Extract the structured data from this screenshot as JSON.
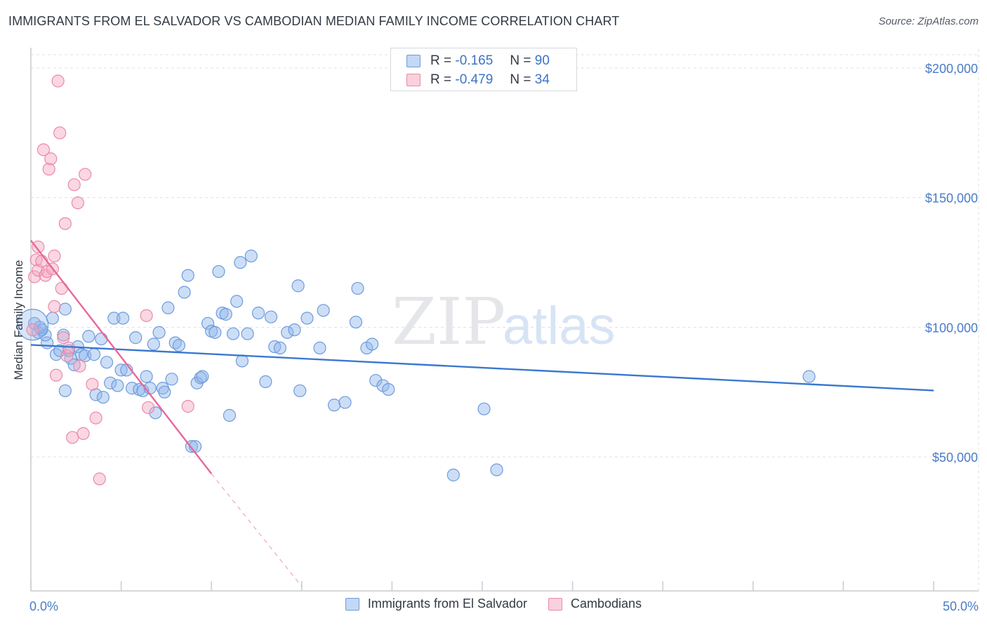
{
  "header": {
    "title": "IMMIGRANTS FROM EL SALVADOR VS CAMBODIAN MEDIAN FAMILY INCOME CORRELATION CHART",
    "source": "Source: ZipAtlas.com"
  },
  "watermark": {
    "part1": "ZIP",
    "part2": "atlas"
  },
  "legend_stats": [
    {
      "r_label": "R =",
      "r_value": "-0.165",
      "n_label": "N =",
      "n_value": "90",
      "color": "#8fb5ea"
    },
    {
      "r_label": "R =",
      "r_value": "-0.479",
      "n_label": "N =",
      "n_value": "34",
      "color": "#f3a6bf"
    }
  ],
  "chart_data": {
    "type": "scatter",
    "xlabel": "",
    "ylabel": "Median Family Income",
    "xlim": [
      0,
      50
    ],
    "ylim": [
      0,
      205000
    ],
    "y_ticks": [
      {
        "value": 50000,
        "label": "$50,000"
      },
      {
        "value": 100000,
        "label": "$100,000"
      },
      {
        "value": 150000,
        "label": "$150,000"
      },
      {
        "value": 200000,
        "label": "$200,000"
      }
    ],
    "x_tick_labels": [
      {
        "value": 0,
        "label": "0.0%"
      },
      {
        "value": 50,
        "label": "50.0%"
      }
    ],
    "x_minor_ticks": [
      0,
      5,
      10,
      15,
      20,
      25,
      30,
      35,
      40,
      45,
      50
    ],
    "grid": true,
    "legend_position": "bottom",
    "series": [
      {
        "name": "Immigrants from El Salvador",
        "color": "#8fb5ea",
        "stroke": "#6e9bdc",
        "trend": {
          "x": [
            0,
            50
          ],
          "y": [
            93200,
            75600
          ],
          "color": "#3a78cf"
        },
        "points": [
          [
            0.2,
            101500
          ],
          [
            0.4,
            98000
          ],
          [
            0.6,
            99000
          ],
          [
            0.9,
            94000
          ],
          [
            0.8,
            97000
          ],
          [
            1.2,
            103500
          ],
          [
            1.4,
            89500
          ],
          [
            1.6,
            91000
          ],
          [
            1.8,
            97000
          ],
          [
            1.9,
            107000
          ],
          [
            1.9,
            75500
          ],
          [
            2.2,
            88000
          ],
          [
            2.4,
            85500
          ],
          [
            2.6,
            92500
          ],
          [
            2.8,
            89500
          ],
          [
            3.0,
            89000
          ],
          [
            3.2,
            96500
          ],
          [
            3.5,
            89500
          ],
          [
            3.6,
            74000
          ],
          [
            3.9,
            95500
          ],
          [
            4.0,
            73000
          ],
          [
            4.2,
            86500
          ],
          [
            4.4,
            78500
          ],
          [
            4.6,
            103500
          ],
          [
            4.8,
            77500
          ],
          [
            5.0,
            83500
          ],
          [
            5.1,
            103500
          ],
          [
            5.3,
            83500
          ],
          [
            5.6,
            76500
          ],
          [
            5.8,
            96000
          ],
          [
            6.0,
            76000
          ],
          [
            6.2,
            75500
          ],
          [
            6.4,
            81000
          ],
          [
            6.6,
            76500
          ],
          [
            6.8,
            93500
          ],
          [
            6.9,
            67000
          ],
          [
            7.1,
            98000
          ],
          [
            7.3,
            76500
          ],
          [
            7.4,
            75000
          ],
          [
            7.6,
            107500
          ],
          [
            7.8,
            80000
          ],
          [
            8.0,
            94000
          ],
          [
            8.2,
            93000
          ],
          [
            8.5,
            113500
          ],
          [
            8.7,
            120000
          ],
          [
            8.9,
            54000
          ],
          [
            9.1,
            54000
          ],
          [
            9.2,
            78500
          ],
          [
            9.4,
            80500
          ],
          [
            9.5,
            81000
          ],
          [
            9.8,
            101500
          ],
          [
            10.0,
            98500
          ],
          [
            10.2,
            98000
          ],
          [
            10.4,
            121500
          ],
          [
            10.6,
            105500
          ],
          [
            10.8,
            105000
          ],
          [
            11.0,
            66000
          ],
          [
            11.2,
            97500
          ],
          [
            11.4,
            110000
          ],
          [
            11.6,
            125000
          ],
          [
            11.7,
            87000
          ],
          [
            12.0,
            97500
          ],
          [
            12.2,
            127500
          ],
          [
            12.6,
            105500
          ],
          [
            13.0,
            79000
          ],
          [
            13.3,
            104000
          ],
          [
            13.5,
            92500
          ],
          [
            13.8,
            92000
          ],
          [
            14.2,
            98000
          ],
          [
            14.6,
            99000
          ],
          [
            14.8,
            116000
          ],
          [
            14.9,
            75500
          ],
          [
            15.3,
            103500
          ],
          [
            16.0,
            92000
          ],
          [
            16.2,
            106500
          ],
          [
            16.8,
            70000
          ],
          [
            17.4,
            71000
          ],
          [
            18.0,
            102000
          ],
          [
            18.1,
            115000
          ],
          [
            18.6,
            92000
          ],
          [
            18.9,
            93500
          ],
          [
            19.1,
            79500
          ],
          [
            19.5,
            77500
          ],
          [
            19.8,
            76000
          ],
          [
            23.4,
            43000
          ],
          [
            25.1,
            68500
          ],
          [
            25.8,
            45000
          ],
          [
            43.1,
            81000
          ],
          [
            0.5,
            100000
          ],
          [
            2.1,
            91000
          ]
        ]
      },
      {
        "name": "Cambodians",
        "color": "#f3a6bf",
        "stroke": "#e98aab",
        "trend": {
          "x": [
            0,
            10
          ],
          "y": [
            133500,
            43500
          ],
          "dash_to": {
            "x": 15,
            "y": 0
          },
          "color": "#e8679a"
        },
        "points": [
          [
            0.1,
            99000
          ],
          [
            0.2,
            119500
          ],
          [
            0.3,
            126000
          ],
          [
            0.4,
            122000
          ],
          [
            0.4,
            131000
          ],
          [
            0.6,
            125500
          ],
          [
            0.7,
            168500
          ],
          [
            0.8,
            120000
          ],
          [
            0.9,
            121500
          ],
          [
            1.0,
            161000
          ],
          [
            1.1,
            165000
          ],
          [
            1.2,
            122500
          ],
          [
            1.3,
            127500
          ],
          [
            1.4,
            81500
          ],
          [
            1.5,
            195000
          ],
          [
            1.6,
            175000
          ],
          [
            1.7,
            115000
          ],
          [
            1.8,
            96000
          ],
          [
            1.9,
            140000
          ],
          [
            2.0,
            89000
          ],
          [
            2.1,
            92000
          ],
          [
            2.3,
            57500
          ],
          [
            2.4,
            155000
          ],
          [
            2.6,
            148000
          ],
          [
            2.7,
            85000
          ],
          [
            2.9,
            59000
          ],
          [
            3.0,
            159000
          ],
          [
            3.4,
            78000
          ],
          [
            3.6,
            65000
          ],
          [
            3.8,
            41500
          ],
          [
            6.4,
            104500
          ],
          [
            8.7,
            69500
          ],
          [
            6.5,
            69000
          ],
          [
            1.3,
            108000
          ]
        ]
      }
    ]
  }
}
